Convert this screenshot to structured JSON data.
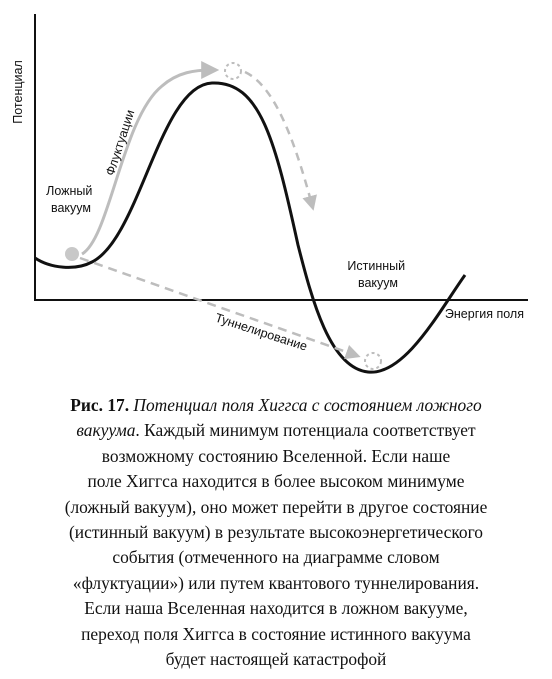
{
  "diagram": {
    "y_axis_label": "Потенциал",
    "x_axis_label": "Энергия поля",
    "false_vacuum_label_line1": "Ложный",
    "false_vacuum_label_line2": "вакуум",
    "true_vacuum_label_line1": "Истинный",
    "true_vacuum_label_line2": "вакуум",
    "fluctuations_label": "Флуктуации",
    "tunneling_label": "Туннелирование",
    "colors": {
      "curve": "#111111",
      "arrow": "#bdbdbd",
      "ball": "#c8c8c8"
    }
  },
  "caption": {
    "label": "Рис. 17.",
    "italic_line1": "Потенциал поля Хиггса с состоянием ложного",
    "italic_line2": "вакуума",
    "line2_rest": ". Каждый минимум потенциала соответствует",
    "line3": "возможному состоянию Вселенной. Если наше",
    "line4": "поле Хиггса находится в более высоком минимуме",
    "line5": "(ложный вакуум), оно может перейти в другое состояние",
    "line6": "(истинный вакуум) в результате высокоэнергетического",
    "line7": "события (отмеченного на диаграмме словом",
    "line8": "«флуктуации») или путем квантового туннелирования.",
    "line9": "Если наша Вселенная находится в ложном вакууме,",
    "line10": "переход поля Хиггса в состояние истинного вакуума",
    "line11": "будет настоящей катастрофой"
  }
}
